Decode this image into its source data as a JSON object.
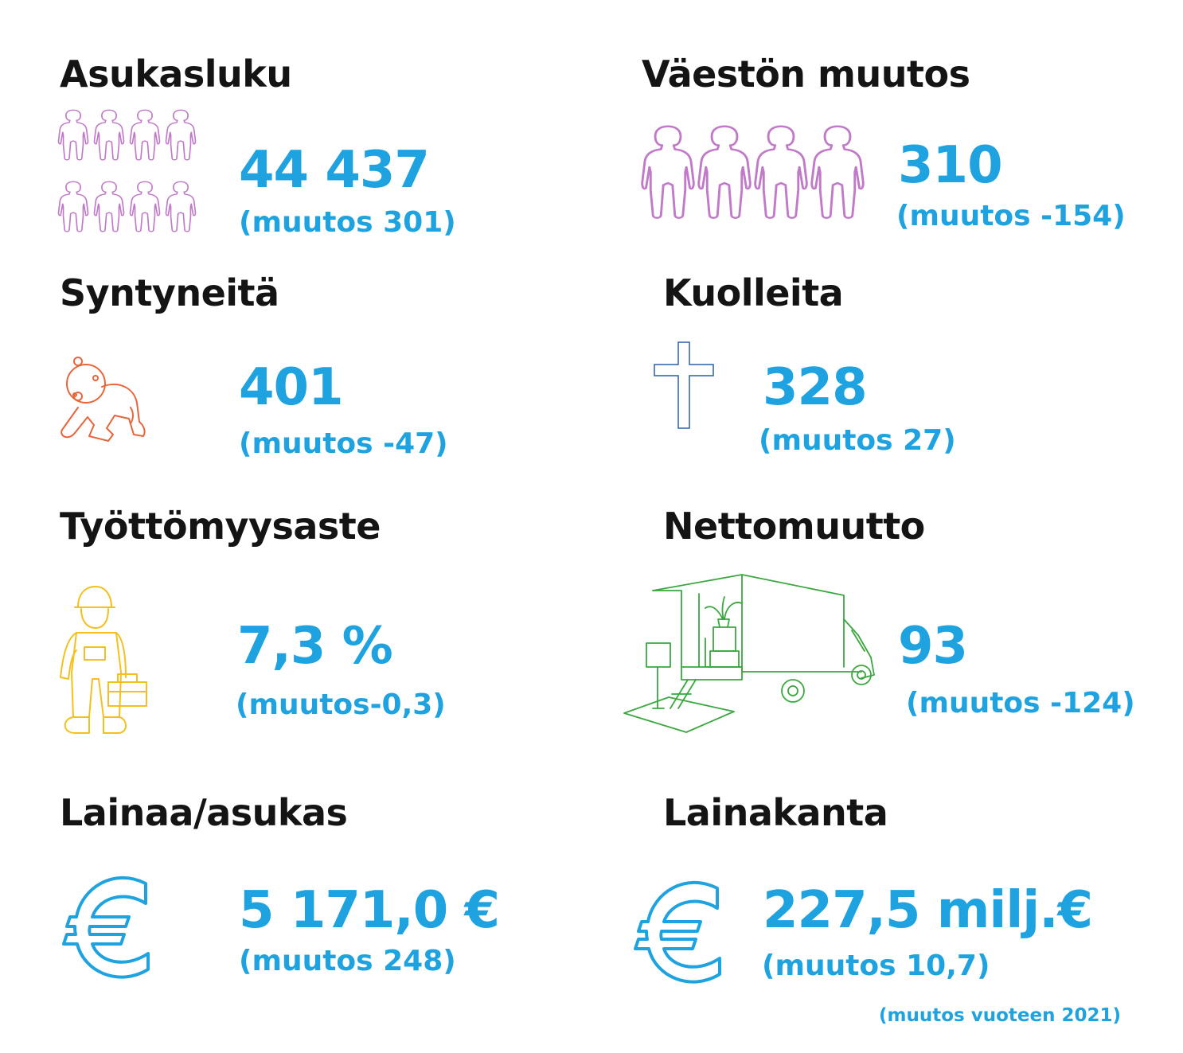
{
  "colors": {
    "heading": "#141414",
    "value": "#1ea3e0",
    "people_icon": "#c07ac8",
    "baby_icon": "#e8643a",
    "cross_icon": "#2b5fa8",
    "worker_icon": "#f4c01e",
    "truck_icon": "#3aa73f",
    "euro_icon": "#1ea3e0"
  },
  "stats": {
    "asukasluku": {
      "title": "Asukasluku",
      "value": "44 437",
      "change": "(muutos 301)",
      "icon": "people-group-icon"
    },
    "vaeston_muutos": {
      "title": "Väestön muutos",
      "value": "310",
      "change": "(muutos -154)",
      "icon": "people-row-icon"
    },
    "syntyneita": {
      "title": "Syntyneitä",
      "value": "401",
      "change": "(muutos -47)",
      "icon": "baby-icon"
    },
    "kuolleita": {
      "title": "Kuolleita",
      "value": "328",
      "change": "(muutos 27)",
      "icon": "cross-icon"
    },
    "tyottomyysaste": {
      "title": "Työttömyysaste",
      "value": "7,3 %",
      "change": "(muutos-0,3)",
      "icon": "worker-icon"
    },
    "nettomuutto": {
      "title": "Nettomuutto",
      "value": "93",
      "change": "(muutos -124)",
      "icon": "moving-truck-icon"
    },
    "lainaa_asukas": {
      "title": "Lainaa/asukas",
      "value": "5 171,0 €",
      "change": "(muutos 248)",
      "icon": "euro-icon"
    },
    "lainakanta": {
      "title": "Lainakanta",
      "value": "227,5 milj.€",
      "change": "(muutos 10,7)",
      "icon": "euro-icon"
    }
  },
  "footnote": "(muutos vuoteen 2021)"
}
